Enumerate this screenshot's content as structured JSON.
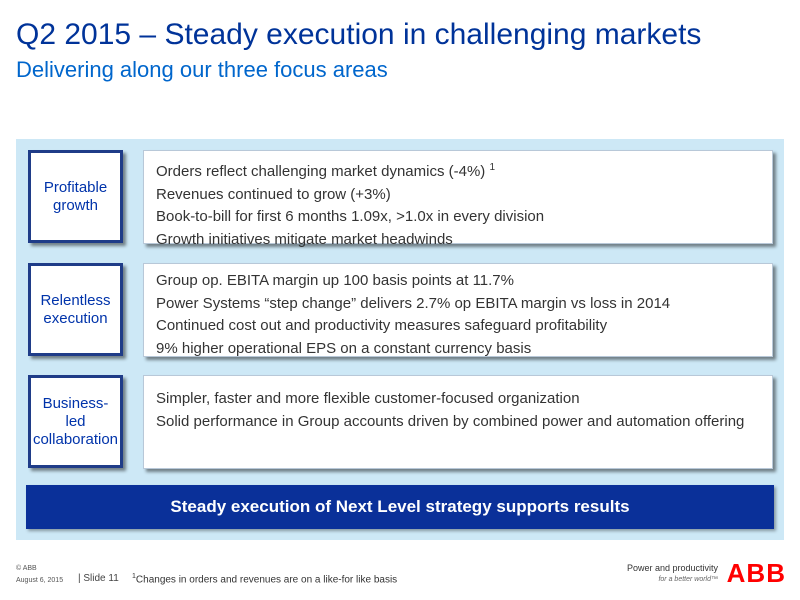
{
  "header": {
    "title": "Q2 2015 – Steady execution in challenging markets",
    "subtitle": "Delivering along our three focus areas"
  },
  "sections": [
    {
      "label": "Profitable growth",
      "bullets": [
        "Orders reflect challenging market dynamics (-4%)",
        "Revenues continued to grow (+3%)",
        "Book-to-bill for first 6 months 1.09x,  >1.0x in every division",
        "Growth initiatives mitigate market headwinds"
      ],
      "footnote_mark": "1"
    },
    {
      "label": "Relentless execution",
      "bullets": [
        "Group op. EBITA margin up 100  basis points at 11.7%",
        "Power Systems “step change” delivers 2.7% op EBITA margin vs loss in 2014",
        "Continued cost out and productivity measures safeguard profitability",
        "9% higher operational EPS on a constant currency basis"
      ]
    },
    {
      "label": "Business-led collaboration",
      "label_lines": [
        "Business-",
        "led",
        "collaboration"
      ],
      "bullets": [
        "Simpler, faster and more flexible customer-focused organization",
        "Solid performance in Group accounts driven by combined power and automation offering"
      ]
    }
  ],
  "banner": {
    "text": "Steady execution of Next Level strategy supports results"
  },
  "footer": {
    "copyright": "© ABB",
    "date": "August 6, 2015",
    "slide": "| Slide 11",
    "footnote_mark": "1",
    "footnote": "Changes in orders and revenues are on a like-for like basis",
    "tagline": "Power and productivity",
    "tagline_sub": "for a better world™",
    "logo": "ABB"
  },
  "colors": {
    "title": "#003399",
    "subtitle": "#0066cc",
    "panel": "#cde8f6",
    "banner": "#0a3099",
    "logo": "#ff0000"
  }
}
